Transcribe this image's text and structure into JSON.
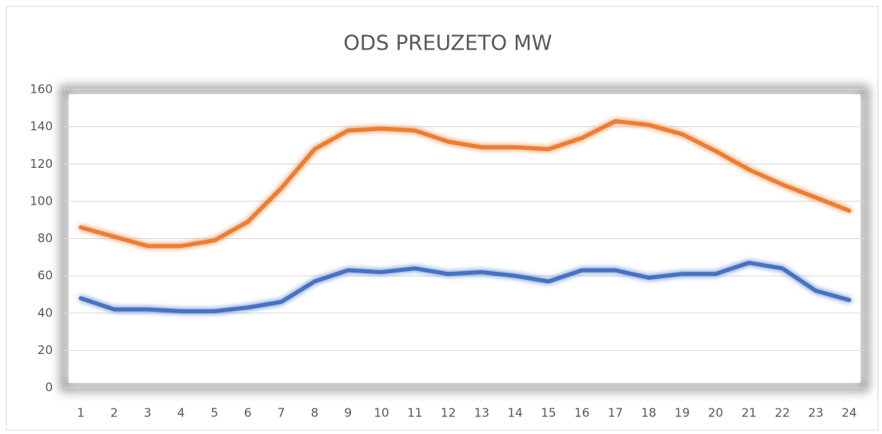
{
  "chart_data": {
    "type": "line",
    "title": "ODS PREUZETO MW",
    "categories": [
      "1",
      "2",
      "3",
      "4",
      "5",
      "6",
      "7",
      "8",
      "9",
      "10",
      "11",
      "12",
      "13",
      "14",
      "15",
      "16",
      "17",
      "18",
      "19",
      "20",
      "21",
      "22",
      "23",
      "24"
    ],
    "series": [
      {
        "color": "#ed7d31",
        "values": [
          86,
          81,
          76,
          76,
          79,
          89,
          107,
          128,
          138,
          139,
          138,
          132,
          129,
          129,
          128,
          134,
          143,
          141,
          136,
          127,
          117,
          109,
          102,
          95
        ]
      },
      {
        "color": "#4472c4",
        "values": [
          48,
          42,
          42,
          41,
          41,
          43,
          46,
          57,
          63,
          62,
          64,
          61,
          62,
          60,
          57,
          63,
          63,
          59,
          61,
          61,
          67,
          64,
          52,
          47
        ]
      }
    ],
    "ylim": [
      0,
      160
    ],
    "yticks": [
      0,
      20,
      40,
      60,
      80,
      100,
      120,
      140,
      160
    ],
    "grid": true
  }
}
